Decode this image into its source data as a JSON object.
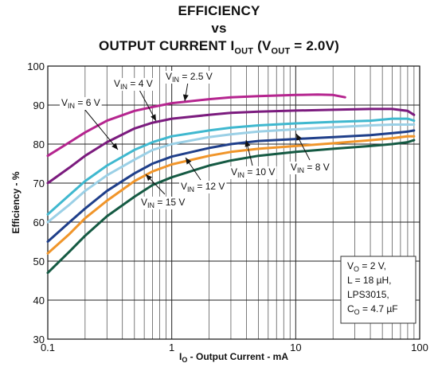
{
  "title": {
    "line1": "EFFICIENCY",
    "line2": "vs",
    "line3": "OUTPUT CURRENT I",
    "line3_sub": "OUT",
    "line3_mid": " (V",
    "line3_sub2": "OUT",
    "line3_end": " = 2.0V)"
  },
  "chart_data": {
    "type": "line",
    "x_scale": "log",
    "xlim": [
      0.1,
      100
    ],
    "ylim": [
      30,
      100
    ],
    "y_ticks": [
      30,
      40,
      50,
      60,
      70,
      80,
      90,
      100
    ],
    "x_tick_labels": [
      {
        "value": 0.1,
        "label": "0.1"
      },
      {
        "value": 1,
        "label": "1"
      },
      {
        "value": 10,
        "label": "10"
      },
      {
        "value": 100,
        "label": "100"
      }
    ],
    "xlabel": {
      "main": "I",
      "sub": "O",
      "rest": " - Output Current - mA"
    },
    "ylabel": "Efficiency - %",
    "grid": true,
    "series": [
      {
        "name": "VIN = 2.5 V",
        "color": "#b5258f",
        "points": [
          [
            0.1,
            77
          ],
          [
            0.15,
            80.5
          ],
          [
            0.2,
            83
          ],
          [
            0.3,
            86
          ],
          [
            0.5,
            88.5
          ],
          [
            0.7,
            89.5
          ],
          [
            1,
            90.5
          ],
          [
            2,
            91.5
          ],
          [
            3,
            92
          ],
          [
            5,
            92.3
          ],
          [
            10,
            92.6
          ],
          [
            15,
            92.7
          ],
          [
            20,
            92.6
          ],
          [
            25,
            92
          ]
        ]
      },
      {
        "name": "VIN = 4 V",
        "color": "#7b1b7e",
        "points": [
          [
            0.1,
            70
          ],
          [
            0.15,
            74
          ],
          [
            0.2,
            77
          ],
          [
            0.3,
            80.5
          ],
          [
            0.5,
            84
          ],
          [
            0.7,
            85.5
          ],
          [
            1,
            86.5
          ],
          [
            2,
            87.5
          ],
          [
            3,
            88
          ],
          [
            5,
            88.3
          ],
          [
            10,
            88.6
          ],
          [
            20,
            88.8
          ],
          [
            40,
            89
          ],
          [
            60,
            89
          ],
          [
            80,
            88.5
          ],
          [
            90,
            87.5
          ]
        ]
      },
      {
        "name": "VIN = 6 V",
        "color": "#3fb8cf",
        "points": [
          [
            0.1,
            62
          ],
          [
            0.15,
            67
          ],
          [
            0.2,
            70.5
          ],
          [
            0.3,
            74.5
          ],
          [
            0.5,
            78.5
          ],
          [
            0.7,
            80.5
          ],
          [
            1,
            82
          ],
          [
            2,
            83.5
          ],
          [
            3,
            84.2
          ],
          [
            5,
            84.8
          ],
          [
            10,
            85.3
          ],
          [
            20,
            85.7
          ],
          [
            40,
            86
          ],
          [
            60,
            86.5
          ],
          [
            80,
            86.5
          ],
          [
            90,
            86
          ]
        ]
      },
      {
        "name": "VIN = 8 V",
        "color": "#9bd0e6",
        "points": [
          [
            0.1,
            60
          ],
          [
            0.15,
            64.5
          ],
          [
            0.2,
            68
          ],
          [
            0.3,
            72
          ],
          [
            0.5,
            76
          ],
          [
            0.7,
            78.5
          ],
          [
            1,
            80
          ],
          [
            2,
            81.8
          ],
          [
            3,
            82.5
          ],
          [
            5,
            83.2
          ],
          [
            10,
            83.8
          ],
          [
            20,
            84.3
          ],
          [
            40,
            84.8
          ],
          [
            60,
            85
          ],
          [
            80,
            85
          ],
          [
            90,
            85
          ]
        ]
      },
      {
        "name": "VIN = 10 V",
        "color": "#1f3f8a",
        "points": [
          [
            0.1,
            55
          ],
          [
            0.15,
            60
          ],
          [
            0.2,
            63.5
          ],
          [
            0.3,
            68
          ],
          [
            0.5,
            72.5
          ],
          [
            0.7,
            75
          ],
          [
            1,
            76.8
          ],
          [
            2,
            79
          ],
          [
            3,
            80
          ],
          [
            5,
            80.8
          ],
          [
            10,
            81.3
          ],
          [
            20,
            81.8
          ],
          [
            40,
            82.3
          ],
          [
            60,
            82.8
          ],
          [
            80,
            83.2
          ],
          [
            90,
            83.5
          ]
        ]
      },
      {
        "name": "VIN = 12 V",
        "color": "#f0952a",
        "points": [
          [
            0.1,
            52
          ],
          [
            0.15,
            57
          ],
          [
            0.2,
            61
          ],
          [
            0.3,
            65.5
          ],
          [
            0.5,
            70.5
          ],
          [
            0.7,
            73
          ],
          [
            1,
            74.8
          ],
          [
            2,
            77
          ],
          [
            3,
            78
          ],
          [
            5,
            78.8
          ],
          [
            10,
            79.5
          ],
          [
            20,
            80.2
          ],
          [
            40,
            81
          ],
          [
            60,
            81.5
          ],
          [
            80,
            82
          ],
          [
            90,
            82
          ]
        ]
      },
      {
        "name": "VIN = 15 V",
        "color": "#155a43",
        "points": [
          [
            0.1,
            47
          ],
          [
            0.15,
            52.5
          ],
          [
            0.2,
            56.5
          ],
          [
            0.3,
            61.5
          ],
          [
            0.5,
            66.5
          ],
          [
            0.7,
            69.5
          ],
          [
            1,
            71.5
          ],
          [
            2,
            74.5
          ],
          [
            3,
            75.8
          ],
          [
            5,
            77
          ],
          [
            10,
            78
          ],
          [
            20,
            78.8
          ],
          [
            40,
            79.5
          ],
          [
            60,
            80
          ],
          [
            80,
            80.5
          ],
          [
            90,
            81
          ]
        ]
      }
    ],
    "annotations": [
      {
        "id": "ann-2p5",
        "main": "V",
        "sub": "IN",
        "rest": " = 2.5 V",
        "series": 0
      },
      {
        "id": "ann-4",
        "main": "V",
        "sub": "IN",
        "rest": " = 4 V",
        "series": 1
      },
      {
        "id": "ann-6",
        "main": "V",
        "sub": "IN",
        "rest": " = 6 V",
        "series": 2
      },
      {
        "id": "ann-8",
        "main": "V",
        "sub": "IN",
        "rest": " = 8 V",
        "series": 3
      },
      {
        "id": "ann-10",
        "main": "V",
        "sub": "IN",
        "rest": " = 10 V",
        "series": 4
      },
      {
        "id": "ann-12",
        "main": "V",
        "sub": "IN",
        "rest": " = 12 V",
        "series": 5
      },
      {
        "id": "ann-15",
        "main": "V",
        "sub": "IN",
        "rest": " = 15 V",
        "series": 6
      }
    ],
    "conditions": [
      {
        "main": "V",
        "sub": "O",
        "rest": " = 2 V,"
      },
      {
        "main": "L = 18 ",
        "sub": "",
        "rest": "µH,"
      },
      {
        "main": "LPS3015,",
        "sub": "",
        "rest": ""
      },
      {
        "main": "C",
        "sub": "O",
        "rest": " = 4.7 µF"
      }
    ]
  }
}
